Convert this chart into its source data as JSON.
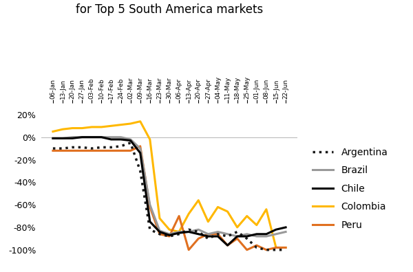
{
  "x_labels": [
    "06-Jan",
    "13-Jan",
    "20-Jan",
    "27-Jan",
    "03-Feb",
    "10-Feb",
    "17-Feb",
    "24-Feb",
    "02-Mar",
    "09-Mar",
    "16-Mar",
    "23-Mar",
    "30-Mar",
    "06-Apr",
    "13-Apr",
    "20-Apr",
    "27-Apr",
    "04-May",
    "11-May",
    "18-May",
    "25-May",
    "01-Jun",
    "08-Jun",
    "15-Jun",
    "22-Jun"
  ],
  "argentina": [
    -0.1,
    -0.1,
    -0.09,
    -0.09,
    -0.1,
    -0.09,
    -0.09,
    -0.08,
    -0.05,
    -0.3,
    -0.82,
    -0.86,
    -0.88,
    -0.86,
    -0.82,
    -0.84,
    -0.9,
    -0.86,
    -0.88,
    -0.84,
    -0.9,
    -0.98,
    -1.0,
    -1.0,
    -1.0
  ],
  "brazil": [
    -0.01,
    -0.01,
    0.0,
    0.0,
    0.0,
    0.0,
    0.0,
    0.0,
    -0.02,
    -0.1,
    -0.6,
    -0.83,
    -0.86,
    -0.84,
    -0.84,
    -0.82,
    -0.86,
    -0.84,
    -0.86,
    -0.88,
    -0.86,
    -0.88,
    -0.88,
    -0.86,
    -0.84
  ],
  "chile": [
    -0.01,
    -0.01,
    -0.01,
    0.0,
    0.0,
    0.0,
    -0.02,
    -0.02,
    -0.03,
    -0.14,
    -0.75,
    -0.84,
    -0.87,
    -0.85,
    -0.84,
    -0.86,
    -0.88,
    -0.88,
    -0.96,
    -0.88,
    -0.88,
    -0.86,
    -0.86,
    -0.82,
    -0.8
  ],
  "colombia": [
    0.05,
    0.07,
    0.08,
    0.08,
    0.09,
    0.09,
    0.1,
    0.11,
    0.12,
    0.14,
    -0.02,
    -0.72,
    -0.82,
    -0.84,
    -0.68,
    -0.56,
    -0.75,
    -0.62,
    -0.66,
    -0.8,
    -0.7,
    -0.78,
    -0.64,
    -0.98,
    -0.98
  ],
  "peru": [
    -0.12,
    -0.12,
    -0.12,
    -0.12,
    -0.12,
    -0.12,
    -0.12,
    -0.12,
    -0.12,
    -0.08,
    -0.62,
    -0.86,
    -0.88,
    -0.7,
    -1.0,
    -0.9,
    -0.86,
    -0.86,
    -0.96,
    -0.9,
    -1.0,
    -0.96,
    -1.0,
    -0.98,
    -0.98
  ],
  "colors": {
    "argentina": "#1a1a1a",
    "brazil": "#999999",
    "chile": "#000000",
    "colombia": "#FFB800",
    "peru": "#E07020"
  },
  "ylim": [
    -1.1,
    0.3
  ],
  "yticks": [
    0.2,
    0.0,
    -0.2,
    -0.4,
    -0.6,
    -0.8,
    -1.0
  ],
  "ytick_labels": [
    "20%",
    "0%",
    "-20%",
    "-40%",
    "-60%",
    "-80%",
    "-100%"
  ],
  "background_color": "#ffffff",
  "title_fontsize": 12,
  "legend_fontsize": 10
}
